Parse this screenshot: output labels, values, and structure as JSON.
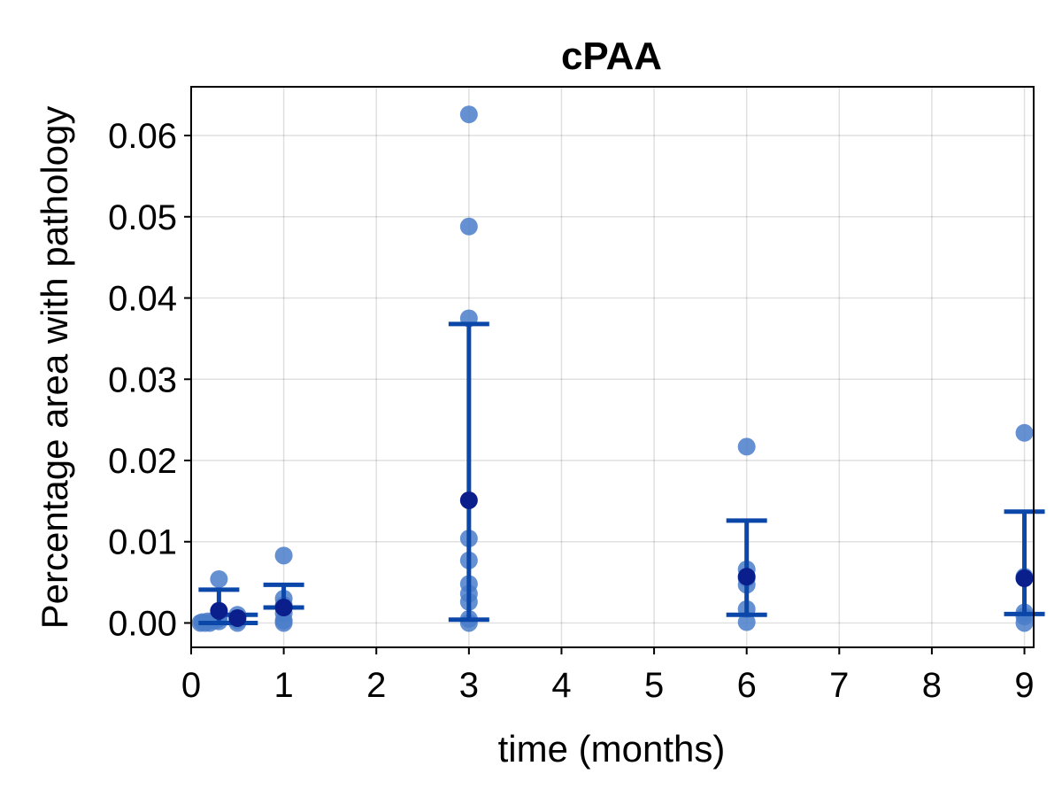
{
  "chart_data": {
    "type": "scatter",
    "title": "cPAA",
    "xlabel": "time (months)",
    "ylabel": "Percentage area with pathology",
    "xlim": [
      0,
      9.1
    ],
    "ylim": [
      -0.003,
      0.066
    ],
    "xticks": [
      0,
      1,
      2,
      3,
      4,
      5,
      6,
      7,
      8,
      9
    ],
    "xtick_labels": [
      "0",
      "1",
      "2",
      "3",
      "4",
      "5",
      "6",
      "7",
      "8",
      "9"
    ],
    "yticks": [
      0,
      0.01,
      0.02,
      0.03,
      0.04,
      0.05,
      0.06
    ],
    "ytick_labels": [
      "0.00",
      "0.01",
      "0.02",
      "0.03",
      "0.04",
      "0.05",
      "0.06"
    ],
    "grid": true,
    "colors": {
      "points": "#4a7cc9",
      "mean": "#0b1f8c",
      "errorbar": "#0a47a9"
    },
    "points": [
      {
        "x": 0.1,
        "y": 0.0
      },
      {
        "x": 0.12,
        "y": 0.0001
      },
      {
        "x": 0.15,
        "y": 0.0
      },
      {
        "x": 0.18,
        "y": 0.0002
      },
      {
        "x": 0.2,
        "y": 0.0
      },
      {
        "x": 0.25,
        "y": 0.0003
      },
      {
        "x": 0.28,
        "y": 0.0004
      },
      {
        "x": 0.3,
        "y": 0.0054
      },
      {
        "x": 0.3,
        "y": 0.0012
      },
      {
        "x": 0.3,
        "y": 0.0008
      },
      {
        "x": 0.3,
        "y": 0.0002
      },
      {
        "x": 0.5,
        "y": 0.001
      },
      {
        "x": 0.5,
        "y": 0.0006
      },
      {
        "x": 0.5,
        "y": 0.0003
      },
      {
        "x": 0.5,
        "y": 0.0
      },
      {
        "x": 1,
        "y": 0.0083
      },
      {
        "x": 1,
        "y": 0.003
      },
      {
        "x": 1,
        "y": 0.0022
      },
      {
        "x": 1,
        "y": 0.0012
      },
      {
        "x": 1,
        "y": 0.0003
      },
      {
        "x": 1,
        "y": 0.0
      },
      {
        "x": 3,
        "y": 0.0626
      },
      {
        "x": 3,
        "y": 0.0488
      },
      {
        "x": 3,
        "y": 0.0375
      },
      {
        "x": 3,
        "y": 0.0104
      },
      {
        "x": 3,
        "y": 0.0077
      },
      {
        "x": 3,
        "y": 0.0048
      },
      {
        "x": 3,
        "y": 0.0036
      },
      {
        "x": 3,
        "y": 0.0026
      },
      {
        "x": 3,
        "y": 0.0005
      },
      {
        "x": 3,
        "y": 0.0
      },
      {
        "x": 6,
        "y": 0.0217
      },
      {
        "x": 6,
        "y": 0.0066
      },
      {
        "x": 6,
        "y": 0.0055
      },
      {
        "x": 6,
        "y": 0.0047
      },
      {
        "x": 6,
        "y": 0.0017
      },
      {
        "x": 6,
        "y": 0.0001
      },
      {
        "x": 9,
        "y": 0.0234
      },
      {
        "x": 9,
        "y": 0.0057
      },
      {
        "x": 9,
        "y": 0.0055
      },
      {
        "x": 9,
        "y": 0.0013
      },
      {
        "x": 9,
        "y": 0.0008
      },
      {
        "x": 9,
        "y": 0.0
      }
    ],
    "means": [
      {
        "x": 0.3,
        "y": 0.0015,
        "lower": 0.0,
        "upper": 0.0041
      },
      {
        "x": 0.5,
        "y": 0.0006,
        "lower": 0.0,
        "upper": 0.001
      },
      {
        "x": 1,
        "y": 0.0019,
        "lower": 0.0019,
        "upper": 0.0047
      },
      {
        "x": 3,
        "y": 0.0151,
        "lower": 0.0004,
        "upper": 0.0368
      },
      {
        "x": 6,
        "y": 0.0057,
        "lower": 0.001,
        "upper": 0.0126
      },
      {
        "x": 9,
        "y": 0.0055,
        "lower": 0.0011,
        "upper": 0.0137
      }
    ]
  }
}
